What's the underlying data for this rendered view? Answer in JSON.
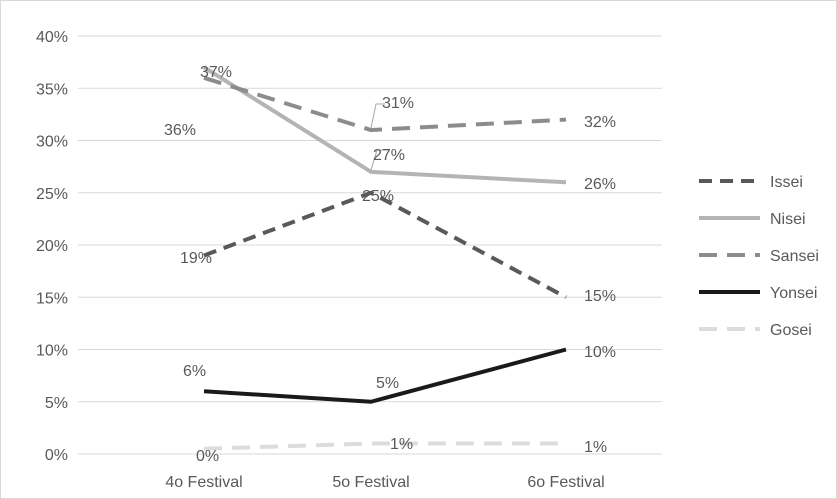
{
  "chart_data": {
    "type": "line",
    "categories": [
      "4o Festival",
      "5o Festival",
      "6o Festival"
    ],
    "ylim": [
      0,
      40
    ],
    "y_ticks": [
      0,
      5,
      10,
      15,
      20,
      25,
      30,
      35,
      40
    ],
    "y_tick_labels": [
      "0%",
      "5%",
      "10%",
      "15%",
      "20%",
      "25%",
      "30%",
      "35%",
      "40%"
    ],
    "grid": true,
    "legend_position": "right",
    "series": [
      {
        "name": "Issei",
        "values": [
          19,
          25,
          15
        ],
        "labels": [
          "19%",
          "25%",
          "15%"
        ],
        "color": "#595959",
        "style": "dash"
      },
      {
        "name": "Nisei",
        "values": [
          37,
          27,
          26
        ],
        "labels": [
          "37%",
          "27%",
          "26%"
        ],
        "color": "#b4b4b4",
        "style": "solid"
      },
      {
        "name": "Sansei",
        "values": [
          36,
          31,
          32
        ],
        "labels": [
          "36%",
          "31%",
          "32%"
        ],
        "color": "#8c8c8c",
        "style": "dash"
      },
      {
        "name": "Yonsei",
        "values": [
          6,
          5,
          10
        ],
        "labels": [
          "6%",
          "5%",
          "10%"
        ],
        "color": "#1a1a1a",
        "style": "solid"
      },
      {
        "name": "Gosei",
        "values": [
          0.5,
          1,
          1
        ],
        "labels": [
          "0%",
          "1%",
          "1%"
        ],
        "color": "#dcdcdc",
        "style": "dash"
      }
    ]
  }
}
